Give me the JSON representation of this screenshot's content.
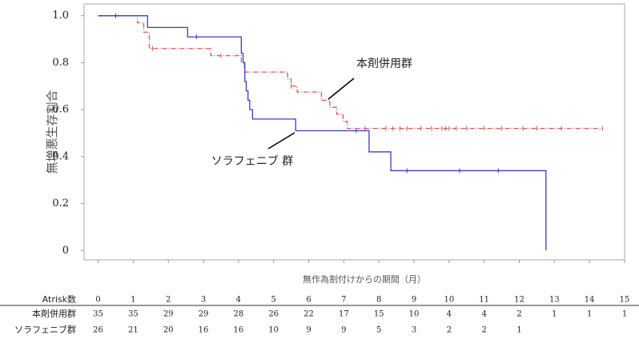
{
  "chart_data": {
    "type": "step",
    "y_label": "無増悪生存割合",
    "x_label": "無作為割付けからの期間（月）",
    "xlim": [
      -0.4,
      15
    ],
    "ylim": [
      -0.04,
      1.05
    ],
    "xticks": [
      0,
      1,
      2,
      3,
      4,
      5,
      6,
      7,
      8,
      9,
      10,
      11,
      12,
      13,
      14,
      15
    ],
    "yticks": [
      0,
      {
        "value": 0.2,
        "label": "0.2"
      },
      {
        "value": 0.4,
        "label": "0.4"
      },
      {
        "value": 0.6,
        "label": "0.6"
      },
      {
        "value": 0.8,
        "label": "0.8"
      },
      {
        "value": 1,
        "label": "1.0"
      }
    ],
    "series": [
      {
        "name": "本剤併用群",
        "color": "#e05555",
        "dash": true,
        "x": [
          0,
          1.12,
          1.3,
          1.46,
          3.21,
          4.08,
          4.17,
          5.4,
          5.5,
          5.67,
          6.36,
          6.6,
          6.8,
          6.98,
          7.1,
          14.37
        ],
        "values": [
          1,
          0.97,
          0.93,
          0.86,
          0.83,
          0.8,
          0.76,
          0.73,
          0.7,
          0.675,
          0.64,
          0.61,
          0.58,
          0.55,
          0.52,
          0.52
        ],
        "censored_x": [
          0.5,
          1.55,
          3.5,
          5.5,
          7.6,
          8.2,
          8.4,
          8.6,
          8.8,
          9.2,
          9.5,
          9.8,
          9.9,
          10.0,
          10.2,
          10.5,
          11.0,
          11.5,
          12.1,
          12.5,
          13.2,
          14.37
        ]
      },
      {
        "name": "ソラフェニブ群",
        "color": "#3b3bd0",
        "dash": false,
        "x": [
          0,
          1.41,
          2.55,
          4.08,
          4.13,
          4.18,
          4.22,
          4.27,
          4.32,
          4.4,
          5.63,
          7.72,
          8.34,
          12.76
        ],
        "values": [
          1,
          0.95,
          0.91,
          0.84,
          0.8,
          0.72,
          0.68,
          0.64,
          0.6,
          0.56,
          0.51,
          0.42,
          0.34,
          0
        ],
        "censored_x": [
          0.5,
          2.8,
          7.35,
          8.8,
          10.3,
          11.4
        ]
      }
    ],
    "annotations": [
      {
        "text": "本剤併用群",
        "series": 0
      },
      {
        "text": "ソラフェニブ 群",
        "series": 1
      }
    ],
    "at_risk": {
      "header": "Atrisk数",
      "rows": [
        [
          35,
          35,
          29,
          29,
          28,
          26,
          22,
          17,
          15,
          10,
          4,
          4,
          2,
          1,
          1,
          1
        ],
        [
          26,
          21,
          20,
          16,
          16,
          10,
          9,
          9,
          5,
          3,
          2,
          2,
          1
        ]
      ]
    }
  }
}
